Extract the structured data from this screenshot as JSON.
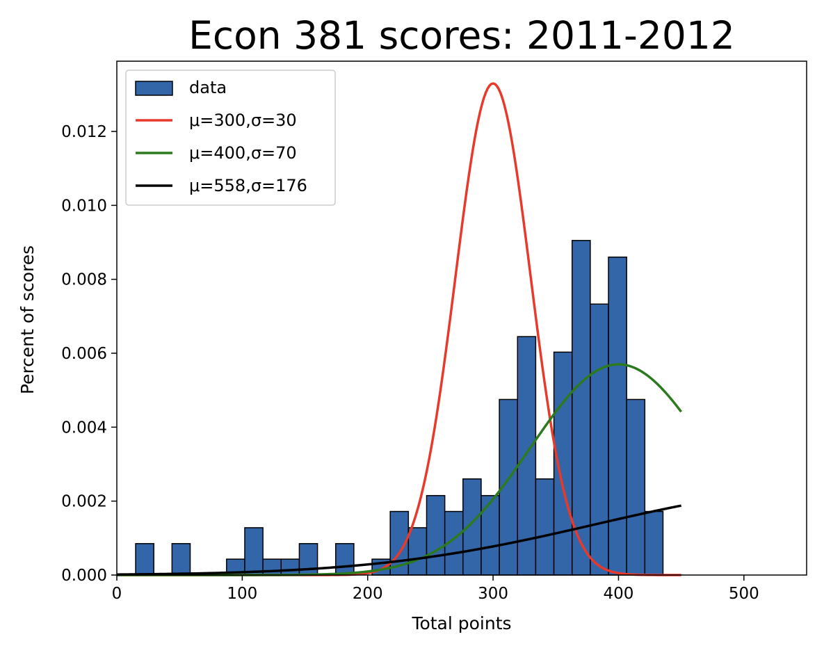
{
  "chart_data": {
    "type": "bar",
    "title": "Econ 381 scores: 2011-2012",
    "xlabel": "Total points",
    "ylabel": "Percent of scores",
    "xlim": [
      0,
      550
    ],
    "ylim": [
      0,
      0.0139
    ],
    "xticks": [
      0,
      100,
      200,
      300,
      400,
      500
    ],
    "xtick_labels": [
      "0",
      "100",
      "200",
      "300",
      "400",
      "500"
    ],
    "yticks": [
      0,
      0.002,
      0.004,
      0.006,
      0.008,
      0.01,
      0.012
    ],
    "ytick_labels": [
      "0.000",
      "0.002",
      "0.004",
      "0.006",
      "0.008",
      "0.010",
      "0.012"
    ],
    "grid": false,
    "legend_position": "top-left",
    "histogram": {
      "name": "data",
      "color": "#3366a8",
      "edge_color": "#000000",
      "bin_start": 15,
      "bin_width": 14.5,
      "values": [
        0.00085,
        0.0,
        0.00085,
        0.0,
        0.0,
        0.00043,
        0.00128,
        0.00043,
        0.00043,
        0.00085,
        0.0,
        0.00085,
        0.0,
        0.00043,
        0.00172,
        0.00128,
        0.00215,
        0.00172,
        0.0026,
        0.00215,
        0.00475,
        0.00645,
        0.0026,
        0.00603,
        0.00905,
        0.00733,
        0.0086,
        0.00475,
        0.00172
      ]
    },
    "series": [
      {
        "name": "μ=300,σ=30",
        "mu": 300,
        "sigma": 30,
        "x_range": [
          0,
          450
        ],
        "color": "#e8392b"
      },
      {
        "name": "μ=400,σ=70",
        "mu": 400,
        "sigma": 70,
        "x_range": [
          0,
          450
        ],
        "color": "#2b7a1e"
      },
      {
        "name": "μ=558,σ=176",
        "mu": 558,
        "sigma": 176,
        "x_range": [
          0,
          450
        ],
        "color": "#000000"
      }
    ]
  }
}
